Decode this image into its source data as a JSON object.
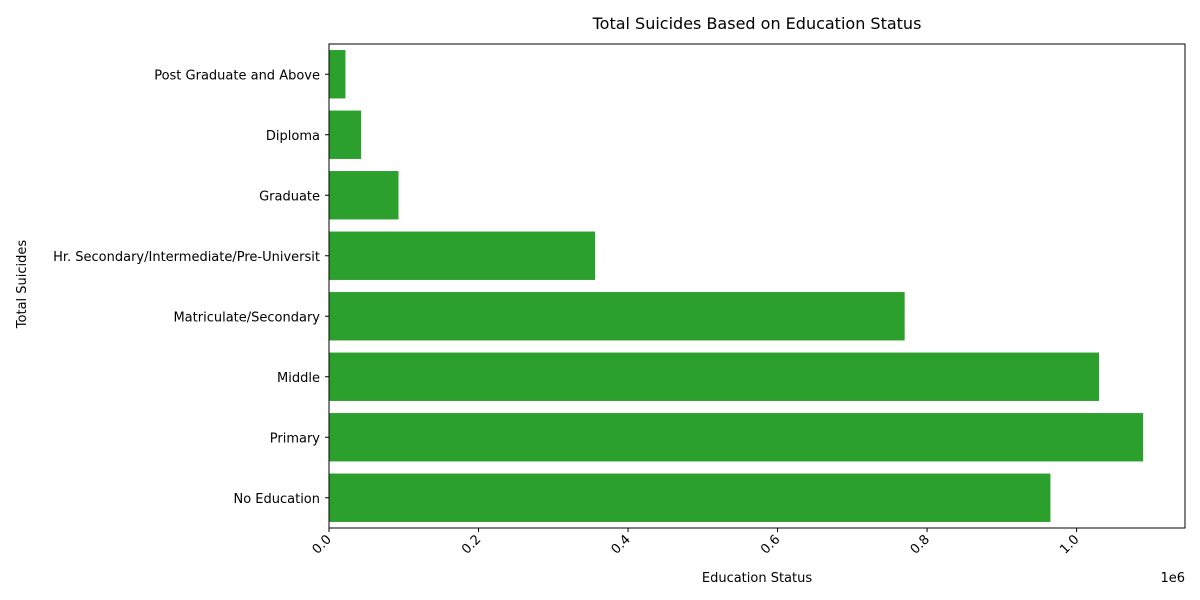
{
  "chart_data": {
    "type": "bar",
    "orientation": "horizontal",
    "title": "Total Suicides Based on Education Status",
    "xlabel": "Education Status",
    "ylabel": "Total Suicides",
    "x_offset_text": "1e6",
    "xlim": [
      0,
      1.145
    ],
    "x_ticks": [
      0.0,
      0.2,
      0.4,
      0.6,
      0.8,
      1.0
    ],
    "x_tick_labels": [
      "0.0",
      "0.2",
      "0.4",
      "0.6",
      "0.8",
      "1.0"
    ],
    "categories": [
      "Post Graduate and Above",
      "Diploma",
      "Graduate",
      "Hr. Secondary/Intermediate/Pre-Universit",
      "Matriculate/Secondary",
      "Middle",
      "Primary",
      "No Education"
    ],
    "values": [
      22000,
      43000,
      93000,
      356000,
      770000,
      1030000,
      1089000,
      965000
    ],
    "bar_color": "#2ca02c",
    "grid": false,
    "legend": "none"
  }
}
